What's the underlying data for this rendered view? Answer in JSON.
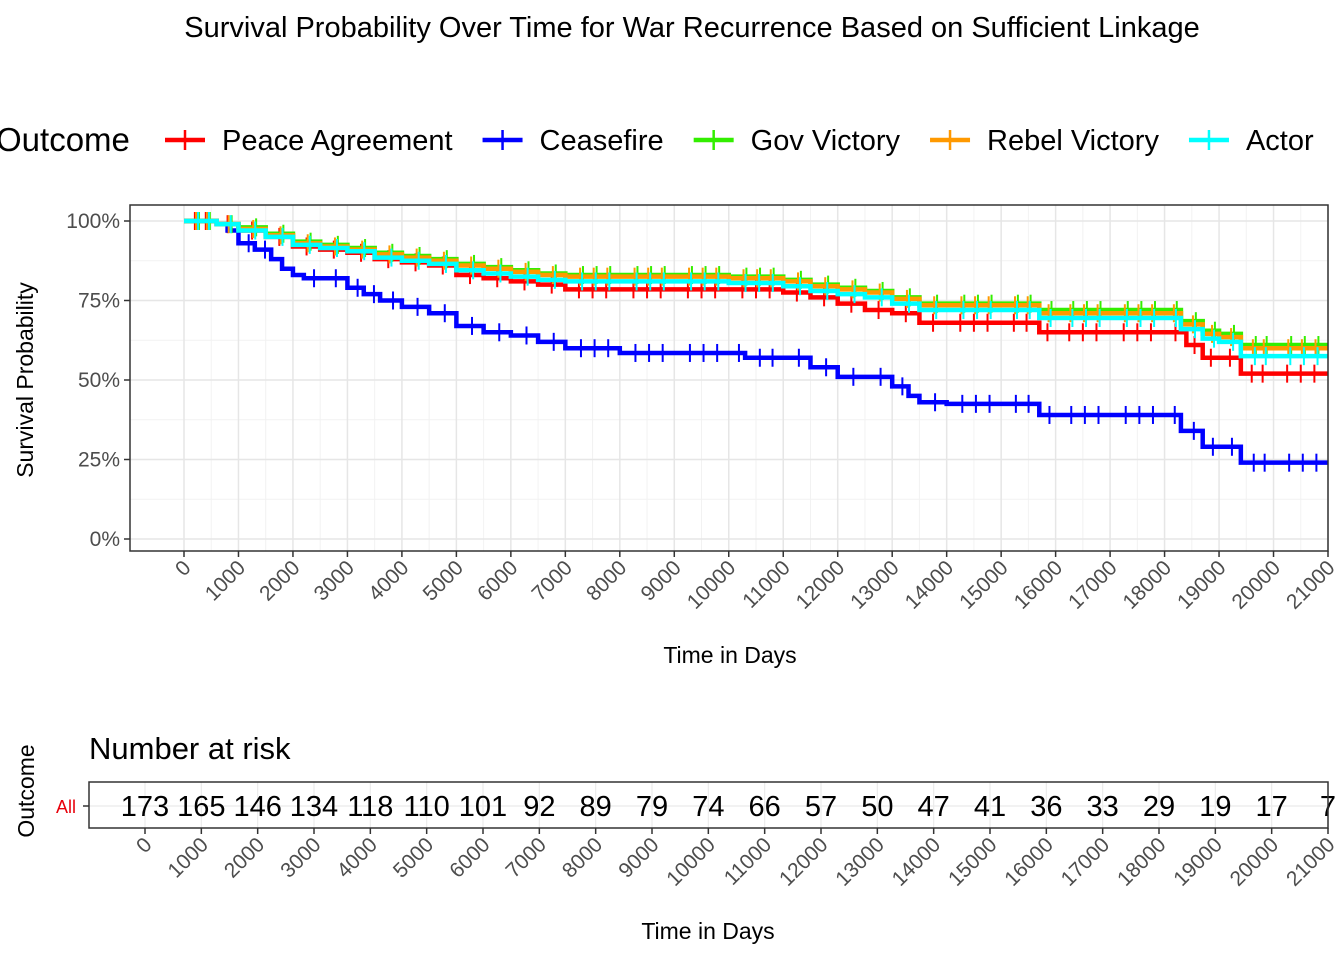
{
  "chart_data": [
    {
      "type": "line",
      "title": "Survival Probability Over Time for War Recurrence Based on Sufficient Linkage",
      "xlabel": "Time in Days",
      "ylabel": "Survival Probability",
      "xlim": [
        0,
        21000
      ],
      "ylim": [
        0,
        1
      ],
      "x_ticks": [
        0,
        1000,
        2000,
        3000,
        4000,
        5000,
        6000,
        7000,
        8000,
        9000,
        10000,
        11000,
        12000,
        13000,
        14000,
        15000,
        16000,
        17000,
        18000,
        19000,
        20000,
        21000
      ],
      "y_ticks": [
        0,
        0.25,
        0.5,
        0.75,
        1.0
      ],
      "y_tick_labels": [
        "0%",
        "25%",
        "50%",
        "75%",
        "100%"
      ],
      "grid": true,
      "legend": {
        "title": "Outcome",
        "position": "top",
        "entries": [
          "Peace Agreement",
          "Ceasefire",
          "Gov Victory",
          "Rebel Victory",
          "Actor"
        ]
      },
      "series": [
        {
          "name": "Peace Agreement",
          "color": "#ff0000",
          "x": [
            0,
            600,
            1000,
            1500,
            2000,
            2500,
            3000,
            3500,
            4000,
            4500,
            5000,
            5500,
            6000,
            6500,
            7000,
            8000,
            9000,
            10000,
            11000,
            11500,
            12000,
            12500,
            13000,
            13500,
            14000,
            15000,
            15700,
            16000,
            17000,
            18000,
            18400,
            18700,
            19000,
            19400,
            20000,
            21000
          ],
          "y": [
            1.0,
            0.99,
            0.97,
            0.95,
            0.92,
            0.91,
            0.9,
            0.88,
            0.87,
            0.86,
            0.83,
            0.82,
            0.81,
            0.8,
            0.785,
            0.785,
            0.785,
            0.785,
            0.775,
            0.76,
            0.74,
            0.72,
            0.71,
            0.68,
            0.68,
            0.68,
            0.65,
            0.65,
            0.65,
            0.65,
            0.61,
            0.57,
            0.57,
            0.52,
            0.52,
            0.52
          ]
        },
        {
          "name": "Ceasefire",
          "color": "#0000ff",
          "x": [
            0,
            600,
            800,
            1000,
            1300,
            1600,
            1800,
            2000,
            2200,
            2500,
            3000,
            3300,
            3600,
            4000,
            4500,
            5000,
            5500,
            6000,
            6500,
            7000,
            8000,
            9000,
            10000,
            10300,
            11000,
            11500,
            12000,
            12500,
            13000,
            13300,
            13500,
            14000,
            15000,
            15700,
            16000,
            17000,
            18000,
            18300,
            18700,
            19000,
            19400,
            20000,
            21000
          ],
          "y": [
            1.0,
            0.99,
            0.97,
            0.93,
            0.91,
            0.88,
            0.85,
            0.83,
            0.82,
            0.82,
            0.79,
            0.77,
            0.75,
            0.73,
            0.71,
            0.67,
            0.65,
            0.64,
            0.62,
            0.6,
            0.585,
            0.585,
            0.585,
            0.57,
            0.57,
            0.54,
            0.51,
            0.51,
            0.48,
            0.45,
            0.43,
            0.425,
            0.425,
            0.39,
            0.39,
            0.39,
            0.39,
            0.34,
            0.29,
            0.29,
            0.24,
            0.24,
            0.24
          ]
        },
        {
          "name": "Gov Victory",
          "color": "#33ee00",
          "x": [
            0,
            600,
            1000,
            1500,
            2000,
            2500,
            3000,
            3500,
            4000,
            4500,
            5000,
            5500,
            6000,
            6500,
            7000,
            8000,
            9000,
            10000,
            11000,
            11500,
            12000,
            12500,
            13000,
            13500,
            14000,
            15000,
            15700,
            16000,
            17000,
            18000,
            18300,
            18700,
            19000,
            19400,
            20000,
            21000
          ],
          "y": [
            1.0,
            0.99,
            0.98,
            0.96,
            0.935,
            0.925,
            0.915,
            0.9,
            0.89,
            0.88,
            0.865,
            0.855,
            0.845,
            0.835,
            0.83,
            0.83,
            0.83,
            0.825,
            0.815,
            0.8,
            0.79,
            0.78,
            0.76,
            0.74,
            0.74,
            0.74,
            0.72,
            0.72,
            0.72,
            0.72,
            0.685,
            0.655,
            0.645,
            0.61,
            0.61,
            0.61
          ]
        },
        {
          "name": "Rebel Victory",
          "color": "#ff9900",
          "x": [
            0,
            600,
            1000,
            1500,
            2000,
            2500,
            3000,
            3500,
            4000,
            4500,
            5000,
            5500,
            6000,
            6500,
            7000,
            8000,
            9000,
            10000,
            11000,
            11500,
            12000,
            12500,
            13000,
            13500,
            14000,
            15000,
            15700,
            16000,
            17000,
            18000,
            18300,
            18700,
            19000,
            19400,
            20000,
            21000
          ],
          "y": [
            1.0,
            0.99,
            0.975,
            0.955,
            0.93,
            0.92,
            0.91,
            0.895,
            0.885,
            0.875,
            0.86,
            0.85,
            0.84,
            0.83,
            0.825,
            0.825,
            0.825,
            0.82,
            0.81,
            0.795,
            0.785,
            0.775,
            0.755,
            0.735,
            0.735,
            0.735,
            0.71,
            0.71,
            0.71,
            0.71,
            0.675,
            0.645,
            0.635,
            0.6,
            0.6,
            0.6
          ]
        },
        {
          "name": "Actor",
          "color": "#00ffff",
          "x": [
            0,
            600,
            1000,
            1500,
            2000,
            2500,
            3000,
            3500,
            4000,
            4500,
            5000,
            5500,
            6000,
            6500,
            7000,
            8000,
            9000,
            10000,
            11000,
            11500,
            12000,
            12500,
            13000,
            13500,
            14000,
            15000,
            15700,
            16000,
            17000,
            18000,
            18300,
            18700,
            19000,
            19400,
            20000,
            21000
          ],
          "y": [
            1.0,
            0.99,
            0.97,
            0.95,
            0.925,
            0.915,
            0.905,
            0.885,
            0.875,
            0.865,
            0.845,
            0.835,
            0.825,
            0.815,
            0.81,
            0.81,
            0.81,
            0.805,
            0.795,
            0.78,
            0.77,
            0.76,
            0.74,
            0.72,
            0.72,
            0.72,
            0.695,
            0.695,
            0.695,
            0.695,
            0.66,
            0.63,
            0.62,
            0.575,
            0.575,
            0.575
          ]
        }
      ]
    },
    {
      "type": "table",
      "title": "Number at risk",
      "xlabel": "Time in Days",
      "ylabel": "Outcome",
      "row_labels": [
        "All"
      ],
      "x": [
        0,
        1000,
        2000,
        3000,
        4000,
        5000,
        6000,
        7000,
        8000,
        9000,
        10000,
        11000,
        12000,
        13000,
        14000,
        15000,
        16000,
        17000,
        18000,
        19000,
        20000,
        21000
      ],
      "values": [
        "173",
        "165",
        "146",
        "134",
        "118",
        "110",
        "101",
        "92",
        "89",
        "79",
        "74",
        "66",
        "57",
        "50",
        "47",
        "41",
        "36",
        "33",
        "29",
        "19",
        "17",
        "7"
      ]
    }
  ]
}
